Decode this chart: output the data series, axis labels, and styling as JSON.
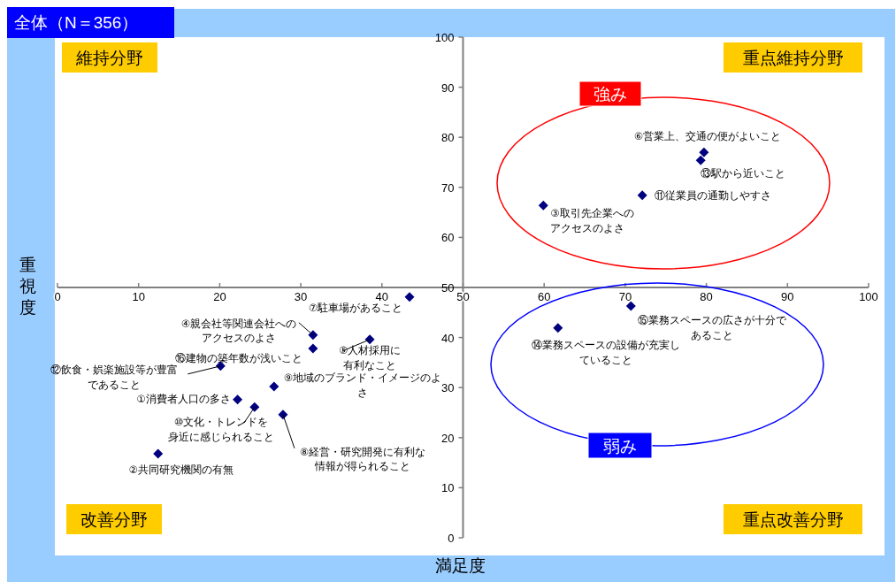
{
  "chart_data": {
    "type": "scatter",
    "title": "全体（N＝356）",
    "xlabel": "満足度",
    "ylabel": "重視度",
    "xlim": [
      0,
      100
    ],
    "ylim": [
      0,
      100
    ],
    "xticks": [
      0,
      10,
      20,
      30,
      40,
      50,
      60,
      70,
      80,
      90,
      100
    ],
    "yticks": [
      0,
      10,
      20,
      30,
      40,
      50,
      60,
      70,
      80,
      90,
      100
    ],
    "grid": false,
    "marker": "diamond",
    "series": [
      {
        "color": "#000080",
        "x": [
          22.2,
          12.4,
          59.9,
          31.5,
          38.5,
          79.7,
          43.4,
          27.8,
          26.7,
          24.3,
          72.1,
          20.1,
          79.3,
          61.7,
          70.7,
          31.5
        ],
        "values": [
          27.6,
          16.8,
          66.4,
          40.5,
          39.6,
          77.0,
          48.1,
          24.6,
          30.2,
          26.1,
          68.4,
          34.3,
          75.4,
          41.9,
          46.3,
          37.8
        ]
      }
    ],
    "annotations": [
      "維持分野",
      "重点維持分野",
      "改善分野",
      "重点改善分野",
      "強み",
      "弱み",
      {
        "text": "①消費者人口の多さ",
        "x": 22.2,
        "y": 27.6
      },
      {
        "text": "②共同研究機関の有無",
        "x": 12.4,
        "y": 16.8
      },
      {
        "text": "③取引先企業へのアクセスのよさ",
        "x": 59.9,
        "y": 66.4
      },
      {
        "text": "④親会社等関連会社へのアクセスのよさ",
        "x": 31.5,
        "y": 40.5
      },
      {
        "text": "⑤人材採用に有利なこと",
        "x": 38.5,
        "y": 39.6
      },
      {
        "text": "⑥営業上、交通の便がよいこと",
        "x": 79.7,
        "y": 77.0
      },
      {
        "text": "⑦駐車場があること",
        "x": 43.4,
        "y": 48.1
      },
      {
        "text": "⑧経営・研究開発に有利な情報が得られること",
        "x": 27.8,
        "y": 24.6
      },
      {
        "text": "⑨地域のブランド・イメージのよさ",
        "x": 26.7,
        "y": 30.2
      },
      {
        "text": "⑩文化・トレンドを身近に感じられること",
        "x": 24.3,
        "y": 26.1
      },
      {
        "text": "⑪従業員の通勤しやすさ",
        "x": 72.1,
        "y": 68.4
      },
      {
        "text": "⑫飲食・娯楽施設等が豊富であること",
        "x": 20.1,
        "y": 34.3
      },
      {
        "text": "⑬駅から近いこと",
        "x": 79.3,
        "y": 75.4
      },
      {
        "text": "⑭業務スペースの設備が充実していること",
        "x": 61.7,
        "y": 41.9
      },
      {
        "text": "⑮業務スペースの広さが十分であること",
        "x": 70.7,
        "y": 46.3
      },
      {
        "text": "⑯建物の築年数が浅いこと",
        "x": 31.5,
        "y": 37.8
      }
    ]
  }
}
